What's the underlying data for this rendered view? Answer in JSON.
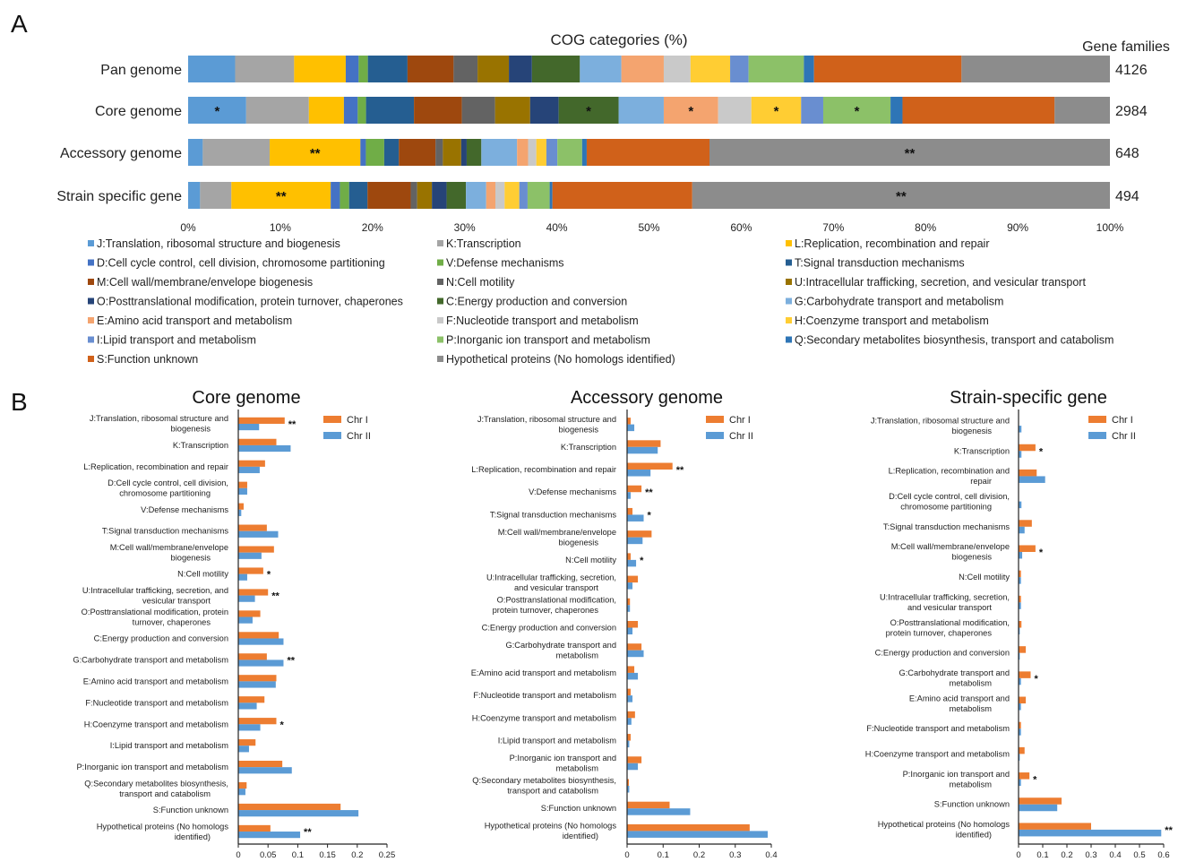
{
  "panel_a": {
    "label": "A",
    "title": "COG categories (%)",
    "gene_families_header": "Gene families"
  },
  "panel_b": {
    "label": "B"
  },
  "chart_data": [
    {
      "type": "bar",
      "orientation": "horizontal",
      "stacked": true,
      "title": "COG categories (%)",
      "rows": [
        "Pan genome",
        "Core genome",
        "Accessory genome",
        "Strain specific gene"
      ],
      "gene_families": [
        "4126",
        "2984",
        "648",
        "494"
      ],
      "xlim": [
        0,
        100
      ],
      "xticks": [
        "0%",
        "10%",
        "20%",
        "30%",
        "40%",
        "50%",
        "60%",
        "70%",
        "80%",
        "90%",
        "100%"
      ],
      "categories": [
        {
          "code": "J",
          "legend": "J:Translation, ribosomal structure and biogenesis",
          "color": "#5b9bd5"
        },
        {
          "code": "K",
          "legend": "K:Transcription",
          "color": "#a5a5a5"
        },
        {
          "code": "L",
          "legend": "L:Replication, recombination and repair",
          "color": "#ffc000"
        },
        {
          "code": "D",
          "legend": "D:Cell cycle control, cell division, chromosome partitioning",
          "color": "#4472c4"
        },
        {
          "code": "V",
          "legend": "V:Defense mechanisms",
          "color": "#70ad47"
        },
        {
          "code": "T",
          "legend": "T:Signal transduction mechanisms",
          "color": "#255e91"
        },
        {
          "code": "M",
          "legend": "M:Cell wall/membrane/envelope biogenesis",
          "color": "#9e480e"
        },
        {
          "code": "N",
          "legend": "N:Cell motility",
          "color": "#636363"
        },
        {
          "code": "U",
          "legend": "U:Intracellular trafficking, secretion, and vesicular transport",
          "color": "#997300"
        },
        {
          "code": "O",
          "legend": "O:Posttranslational modification, protein turnover, chaperones",
          "color": "#264478"
        },
        {
          "code": "C",
          "legend": "C:Energy production and conversion",
          "color": "#43682b"
        },
        {
          "code": "G",
          "legend": "G:Carbohydrate transport and metabolism",
          "color": "#7cafdd"
        },
        {
          "code": "E",
          "legend": "E:Amino acid transport and metabolism",
          "color": "#f4a46f"
        },
        {
          "code": "F",
          "legend": "F:Nucleotide transport and metabolism",
          "color": "#c9c9c9"
        },
        {
          "code": "H",
          "legend": "H:Coenzyme transport and metabolism",
          "color": "#ffcd33"
        },
        {
          "code": "I",
          "legend": "I:Lipid transport and metabolism",
          "color": "#698ed0"
        },
        {
          "code": "P",
          "legend": "P:Inorganic ion transport and metabolism",
          "color": "#8cc168"
        },
        {
          "code": "Q",
          "legend": "Q:Secondary metabolites biosynthesis, transport and catabolism",
          "color": "#2e75b6"
        },
        {
          "code": "S",
          "legend": "S:Function unknown",
          "color": "#d0611a"
        },
        {
          "code": "X",
          "legend": "Hypothetical proteins (No homologs identified)",
          "color": "#8c8c8c"
        }
      ],
      "segments": [
        [
          5.1,
          6.4,
          5.6,
          1.4,
          1.0,
          4.3,
          5.0,
          2.6,
          3.4,
          2.5,
          5.2,
          4.5,
          4.6,
          2.9,
          4.3,
          2.0,
          6.0,
          1.1,
          16.0,
          16.1
        ],
        [
          6.3,
          6.8,
          3.8,
          1.5,
          0.9,
          5.2,
          5.2,
          3.6,
          3.8,
          3.1,
          6.5,
          4.9,
          5.9,
          3.6,
          5.4,
          2.4,
          7.3,
          1.3,
          16.5,
          6.0
        ],
        [
          1.6,
          7.3,
          9.9,
          0.6,
          2.0,
          1.6,
          4.0,
          0.8,
          2.0,
          0.6,
          1.6,
          3.9,
          1.2,
          0.9,
          1.1,
          1.2,
          2.7,
          0.5,
          13.4,
          43.7
        ],
        [
          1.3,
          3.4,
          10.8,
          1.0,
          1.0,
          2.0,
          4.7,
          0.7,
          1.6,
          1.6,
          2.1,
          2.2,
          1.0,
          1.0,
          1.6,
          0.9,
          2.4,
          0.3,
          15.2,
          45.4
        ]
      ],
      "annotations": [
        {
          "row": "Core genome",
          "code": "J",
          "text": "*"
        },
        {
          "row": "Core genome",
          "code": "C",
          "text": "*"
        },
        {
          "row": "Core genome",
          "code": "E",
          "text": "*"
        },
        {
          "row": "Core genome",
          "code": "H",
          "text": "*"
        },
        {
          "row": "Core genome",
          "code": "P",
          "text": "*"
        },
        {
          "row": "Accessory genome",
          "code": "L",
          "text": "**"
        },
        {
          "row": "Accessory genome",
          "code": "X",
          "text": "**"
        },
        {
          "row": "Strain specific gene",
          "code": "L",
          "text": "**"
        },
        {
          "row": "Strain specific gene",
          "code": "X",
          "text": "**"
        }
      ]
    },
    {
      "type": "bar",
      "orientation": "horizontal",
      "title": "Core genome",
      "xlim": [
        0,
        0.25
      ],
      "xticks": [
        "0",
        "0.05",
        "0.1",
        "0.15",
        "0.2",
        "0.25"
      ],
      "series": [
        {
          "name": "Chr I",
          "color": "#ed7d31",
          "values": [
            0.078,
            0.064,
            0.045,
            0.015,
            0.009,
            0.048,
            0.06,
            0.042,
            0.05,
            0.037,
            0.068,
            0.048,
            0.064,
            0.044,
            0.064,
            0.029,
            0.074,
            0.014,
            0.172,
            0.054
          ]
        },
        {
          "name": "Chr II",
          "color": "#5b9bd5",
          "values": [
            0.035,
            0.088,
            0.036,
            0.015,
            0.005,
            0.067,
            0.039,
            0.015,
            0.028,
            0.024,
            0.076,
            0.076,
            0.063,
            0.031,
            0.037,
            0.018,
            0.09,
            0.012,
            0.202,
            0.104
          ]
        }
      ],
      "categories": [
        [
          "J:Translation, ribosomal structure and",
          "biogenesis"
        ],
        [
          "K:Transcription"
        ],
        [
          "L:Replication, recombination and repair"
        ],
        [
          "D:Cell cycle control, cell division,",
          "chromosome partitioning"
        ],
        [
          "V:Defense mechanisms"
        ],
        [
          "T:Signal transduction mechanisms"
        ],
        [
          "M:Cell wall/membrane/envelope",
          "biogenesis"
        ],
        [
          "N:Cell motility"
        ],
        [
          "U:Intracellular trafficking, secretion, and",
          "vesicular transport"
        ],
        [
          "O:Posttranslational modification, protein",
          "turnover, chaperones"
        ],
        [
          "C:Energy production and conversion"
        ],
        [
          "G:Carbohydrate transport and metabolism"
        ],
        [
          "E:Amino acid transport and metabolism"
        ],
        [
          "F:Nucleotide transport and metabolism"
        ],
        [
          "H:Coenzyme transport and metabolism"
        ],
        [
          "I:Lipid transport and metabolism"
        ],
        [
          "P:Inorganic ion transport and metabolism"
        ],
        [
          "Q:Secondary metabolites biosynthesis,",
          "transport and catabolism"
        ],
        [
          "S:Function unknown"
        ],
        [
          "Hypothetical proteins (No homologs",
          "identified)"
        ]
      ],
      "marks": [
        {
          "index": 0,
          "text": "**"
        },
        {
          "index": 7,
          "text": "*"
        },
        {
          "index": 8,
          "text": "**"
        },
        {
          "index": 11,
          "text": "**"
        },
        {
          "index": 14,
          "text": "*"
        },
        {
          "index": 19,
          "text": "**"
        }
      ]
    },
    {
      "type": "bar",
      "orientation": "horizontal",
      "title": "Accessory genome",
      "xlim": [
        0,
        0.4
      ],
      "xticks": [
        "0",
        "0.1",
        "0.2",
        "0.3",
        "0.4"
      ],
      "series": [
        {
          "name": "Chr I",
          "color": "#ed7d31",
          "values": [
            0.01,
            0.093,
            0.126,
            0.04,
            0.015,
            0.068,
            0.01,
            0.03,
            0.008,
            0.03,
            0.04,
            0.02,
            0.01,
            0.022,
            0.01,
            0.04,
            0.005,
            0.118,
            0.34
          ]
        },
        {
          "name": "Chr II",
          "color": "#5b9bd5",
          "values": [
            0.02,
            0.085,
            0.065,
            0.01,
            0.046,
            0.043,
            0.025,
            0.015,
            0.008,
            0.015,
            0.046,
            0.03,
            0.015,
            0.012,
            0.006,
            0.03,
            0.006,
            0.175,
            0.39
          ]
        }
      ],
      "categories": [
        [
          "J:Translation, ribosomal structure and",
          "biogenesis"
        ],
        [
          "K:Transcription"
        ],
        [
          "L:Replication, recombination and repair"
        ],
        [
          "V:Defense mechanisms"
        ],
        [
          "T:Signal transduction mechanisms"
        ],
        [
          "M:Cell wall/membrane/envelope",
          "biogenesis"
        ],
        [
          "N:Cell motility"
        ],
        [
          "U:Intracellular trafficking, secretion,",
          "and vesicular transport"
        ],
        [
          "O:Posttranslational modification,",
          "protein turnover, chaperones"
        ],
        [
          "C:Energy production and conversion"
        ],
        [
          "G:Carbohydrate transport and",
          "metabolism"
        ],
        [
          "E:Amino acid transport and metabolism"
        ],
        [
          "F:Nucleotide transport and metabolism"
        ],
        [
          "H:Coenzyme transport and metabolism"
        ],
        [
          "I:Lipid transport and metabolism"
        ],
        [
          "P:Inorganic ion transport and",
          "metabolism"
        ],
        [
          "Q:Secondary metabolites biosynthesis,",
          "transport and catabolism"
        ],
        [
          "S:Function unknown"
        ],
        [
          "Hypothetical proteins (No homologs",
          "identified)"
        ]
      ],
      "marks": [
        {
          "index": 2,
          "text": "**"
        },
        {
          "index": 3,
          "text": "**"
        },
        {
          "index": 4,
          "text": "*"
        },
        {
          "index": 6,
          "text": "*"
        }
      ]
    },
    {
      "type": "bar",
      "orientation": "horizontal",
      "title": "Strain-specific gene",
      "xlim": [
        0,
        0.6
      ],
      "xticks": [
        "0",
        "0.1",
        "0.2",
        "0.3",
        "0.4",
        "0.5",
        "0.6"
      ],
      "series": [
        {
          "name": "Chr I",
          "color": "#ed7d31",
          "values": [
            0.0,
            0.07,
            0.075,
            0.0,
            0.055,
            0.07,
            0.01,
            0.01,
            0.012,
            0.03,
            0.05,
            0.03,
            0.01,
            0.025,
            0.045,
            0.178,
            0.3
          ]
        },
        {
          "name": "Chr II",
          "color": "#5b9bd5",
          "values": [
            0.012,
            0.012,
            0.11,
            0.012,
            0.025,
            0.015,
            0.01,
            0.01,
            0.005,
            0.005,
            0.01,
            0.01,
            0.01,
            0.005,
            0.01,
            0.16,
            0.59
          ]
        }
      ],
      "categories": [
        [
          "J:Translation, ribosomal structure and",
          "biogenesis"
        ],
        [
          "K:Transcription"
        ],
        [
          "L:Replication, recombination and",
          "repair"
        ],
        [
          "D:Cell cycle control, cell division,",
          "chromosome partitioning"
        ],
        [
          "T:Signal transduction mechanisms"
        ],
        [
          "M:Cell wall/membrane/envelope",
          "biogenesis"
        ],
        [
          "N:Cell motility"
        ],
        [
          "U:Intracellular trafficking, secretion,",
          "and vesicular transport"
        ],
        [
          "O:Posttranslational modification,",
          "protein turnover, chaperones"
        ],
        [
          "C:Energy production and conversion"
        ],
        [
          "G:Carbohydrate transport and",
          "metabolism"
        ],
        [
          "E:Amino acid transport and",
          "metabolism"
        ],
        [
          "F:Nucleotide transport and metabolism"
        ],
        [
          "H:Coenzyme transport and metabolism"
        ],
        [
          "P:Inorganic ion transport and",
          "metabolism"
        ],
        [
          "S:Function unknown"
        ],
        [
          "Hypothetical proteins (No homologs",
          "identified)"
        ]
      ],
      "marks": [
        {
          "index": 1,
          "text": "*"
        },
        {
          "index": 5,
          "text": "*"
        },
        {
          "index": 10,
          "text": "*"
        },
        {
          "index": 14,
          "text": "*"
        },
        {
          "index": 16,
          "text": "**"
        }
      ]
    }
  ]
}
